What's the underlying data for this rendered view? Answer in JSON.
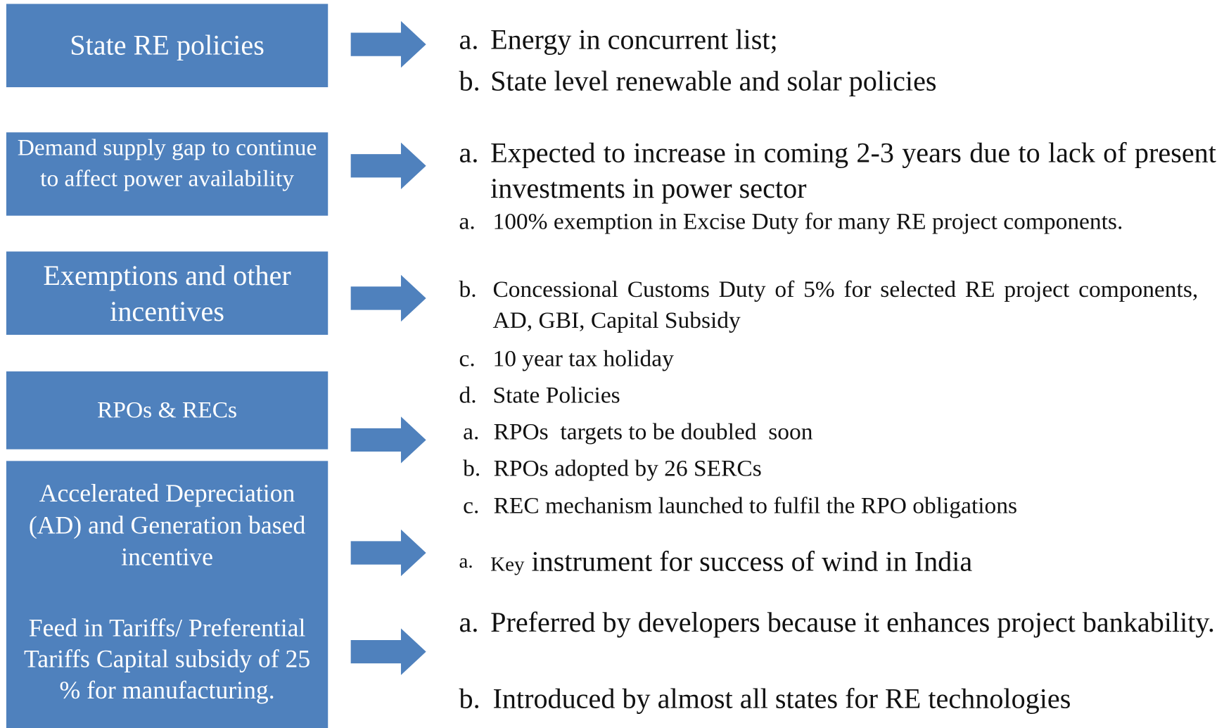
{
  "rows": [
    {
      "label": "State RE policies",
      "items": [
        {
          "marker": "a.",
          "text": "Energy in concurrent list;"
        },
        {
          "marker": "b.",
          "text": "State level renewable and solar policies"
        }
      ]
    },
    {
      "label": "Demand supply gap to continue to affect power availability",
      "items": [
        {
          "marker": "a.",
          "text": "Expected to increase in coming 2-3 years due to lack of present investments in power sector"
        }
      ]
    },
    {
      "label": "Exemptions and other incentives",
      "items": [
        {
          "marker": "a.",
          "text": "100% exemption in Excise Duty for many RE project components."
        },
        {
          "marker": "b.",
          "text": "Concessional Customs Duty of 5% for selected RE project components, AD, GBI, Capital Subsidy"
        },
        {
          "marker": "c.",
          "text": "10 year tax holiday"
        },
        {
          "marker": "d.",
          "text": "State Policies"
        }
      ]
    },
    {
      "label": "RPOs & RECs",
      "items": [
        {
          "marker": "a.",
          "text": "RPOs  targets to be doubled  soon"
        },
        {
          "marker": "b.",
          "text": "RPOs adopted by 26 SERCs"
        },
        {
          "marker": "c.",
          "text": "REC mechanism launched to fulfil the RPO obligations"
        }
      ]
    },
    {
      "label": "Accelerated Depreciation (AD) and Generation based incentive",
      "items": [
        {
          "marker": "a.",
          "lead": "Key",
          "text": "instrument for success of wind in India"
        }
      ]
    },
    {
      "label": "Feed in Tariffs/ Preferential Tariffs Capital subsidy of 25 % for manufacturing.",
      "items": [
        {
          "marker": "a.",
          "text": "Preferred by developers because it enhances project bankability."
        },
        {
          "marker": "b.",
          "text": "Introduced by almost all states for RE technologies"
        }
      ]
    }
  ]
}
